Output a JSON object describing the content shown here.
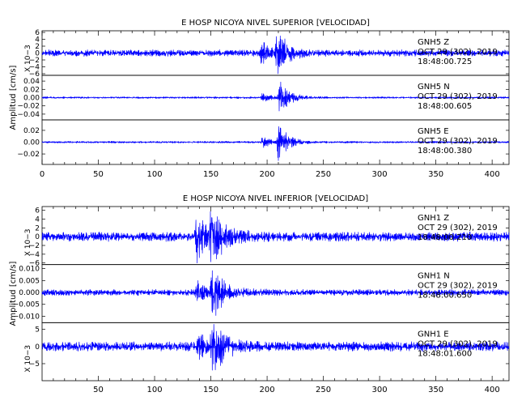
{
  "chart_data": [
    {
      "type": "line",
      "title": "E  HOSP  NICOYA  NIVEL  SUPERIOR  [VELOCIDAD]",
      "ylabel": "Amplitud  [cm/s]",
      "xlim": [
        0,
        415
      ],
      "xticks": [
        "0",
        "50",
        "100",
        "150",
        "200",
        "250",
        "300",
        "350",
        "400"
      ],
      "panels": [
        {
          "station_label": "GNH5   Z",
          "date_label": "OCT  29  (302),  2019",
          "time_label": "18:48:00.725",
          "scale_label": "X  10−3",
          "ylim": [
            -6,
            6
          ],
          "yticks": [
            "6",
            "4",
            "2",
            "0",
            "−2",
            "−4",
            "−6"
          ],
          "noise_amplitude": 0.9,
          "events": [
            {
              "center": 195,
              "width": 6,
              "peak": 3.5
            },
            {
              "center": 209,
              "width": 9,
              "peak": 6.0
            }
          ]
        },
        {
          "station_label": "GNH5   N",
          "date_label": "OCT  29  (302),  2019",
          "time_label": "18:48:00.605",
          "scale_label": "",
          "ylim": [
            -0.05,
            0.05
          ],
          "yticks": [
            "0.04",
            "0.02",
            "0.00",
            "−0.02",
            "−0.04"
          ],
          "noise_amplitude": 0.002,
          "events": [
            {
              "center": 196,
              "width": 6,
              "peak": 0.012
            },
            {
              "center": 211,
              "width": 8,
              "peak": 0.045
            }
          ]
        },
        {
          "station_label": "GNH5   E",
          "date_label": "OCT  29  (302),  2019",
          "time_label": "18:48:00.380",
          "scale_label": "",
          "ylim": [
            -0.035,
            0.035
          ],
          "yticks": [
            "0.02",
            "0.00",
            "−0.02"
          ],
          "noise_amplitude": 0.0015,
          "events": [
            {
              "center": 196,
              "width": 6,
              "peak": 0.01
            },
            {
              "center": 210,
              "width": 8,
              "peak": 0.032
            }
          ]
        }
      ]
    },
    {
      "type": "line",
      "title": "E  HOSP  NICOYA  NIVEL  INFERIOR  [VELOCIDAD]",
      "ylabel": "Amplitud  [cm/s]",
      "xlim": [
        0,
        415
      ],
      "xticks": [
        "50",
        "100",
        "150",
        "200",
        "250",
        "300",
        "350",
        "400"
      ],
      "panels": [
        {
          "station_label": "GNH1   Z",
          "date_label": "OCT  29  (302),  2019",
          "time_label": "18:48:00.210",
          "scale_label": "X  10−3",
          "ylim": [
            -6,
            6.5
          ],
          "yticks": [
            "6",
            "4",
            "2",
            "0",
            "−2",
            "−4",
            "−6"
          ],
          "noise_amplitude": 1.0,
          "events": [
            {
              "center": 137,
              "width": 7,
              "peak": 5.5
            },
            {
              "center": 150,
              "width": 12,
              "peak": 5.8
            }
          ]
        },
        {
          "station_label": "GNH1   N",
          "date_label": "OCT  29  (302),  2019",
          "time_label": "18:48:00.650",
          "scale_label": "",
          "ylim": [
            -0.012,
            0.011
          ],
          "yticks": [
            "0.010",
            "0.005",
            "0.000",
            "−0.005",
            "−0.010"
          ],
          "noise_amplitude": 0.0012,
          "events": [
            {
              "center": 138,
              "width": 6,
              "peak": 0.004
            },
            {
              "center": 151,
              "width": 10,
              "peak": 0.0105
            }
          ]
        },
        {
          "station_label": "GNH1   E",
          "date_label": "OCT  29  (302),  2019",
          "time_label": "18:48:01.600",
          "scale_label": "X  10−3",
          "ylim": [
            -9.5,
            6.5
          ],
          "yticks": [
            "5",
            "0",
            "−5"
          ],
          "noise_amplitude": 1.3,
          "events": [
            {
              "center": 139,
              "width": 6,
              "peak": 3.5
            },
            {
              "center": 151,
              "width": 10,
              "peak": 8.5
            }
          ]
        }
      ]
    }
  ]
}
